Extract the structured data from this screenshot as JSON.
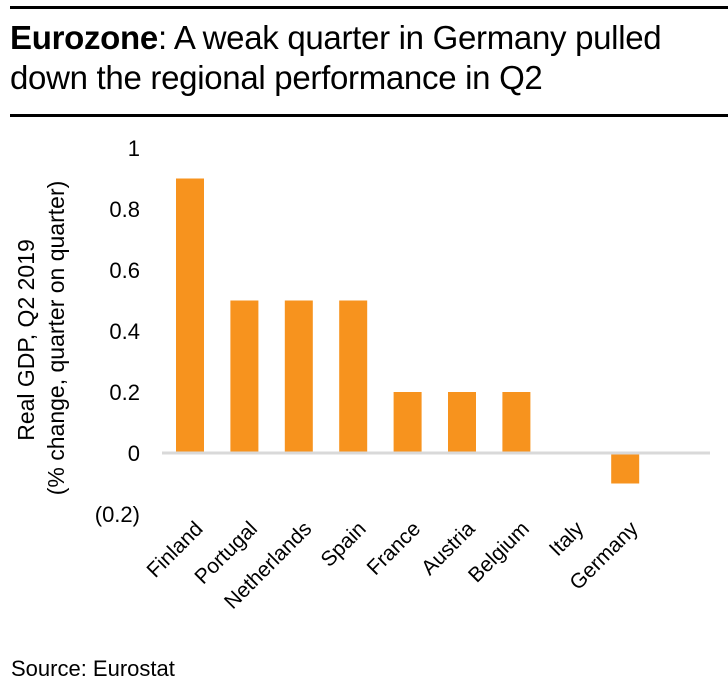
{
  "header": {
    "title_bold": "Eurozone",
    "title_rest": ": A weak quarter in Germany pulled down the regional performance in Q2"
  },
  "footer": {
    "source": "Source: Eurostat"
  },
  "colors": {
    "bar": "#f7931e",
    "axis": "#d9d9d9",
    "text": "#000000"
  },
  "chart_data": {
    "type": "bar",
    "title": "Eurozone: A weak quarter in Germany pulled down the regional performance in Q2",
    "xlabel": "",
    "ylabel_line1": "Real GDP, Q2 2019",
    "ylabel_line2": "(% change, quarter on quarter)",
    "categories": [
      "Finland",
      "Portugal",
      "Netherlands",
      "Spain",
      "France",
      "Austria",
      "Belgium",
      "Italy",
      "Germany"
    ],
    "values": [
      0.9,
      0.5,
      0.5,
      0.5,
      0.2,
      0.2,
      0.2,
      0.0,
      -0.1
    ],
    "ylim": [
      -0.2,
      1.0
    ],
    "yticks": [
      1,
      0.8,
      0.6,
      0.4,
      0.2,
      0,
      -0.2
    ],
    "ytick_labels": [
      "1",
      "0.8",
      "0.6",
      "0.4",
      "0.2",
      "0",
      "(0.2)"
    ],
    "grid": false,
    "legend": "none"
  }
}
